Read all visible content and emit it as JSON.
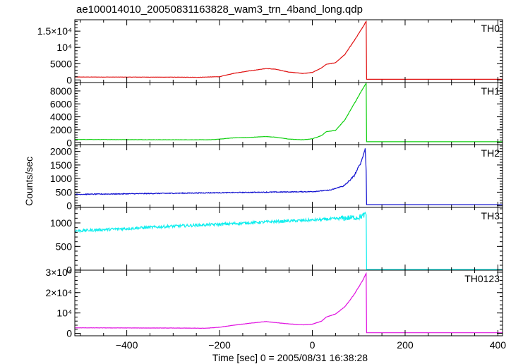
{
  "chart_data": {
    "type": "line",
    "title": "ae100014010_20050831163828_wam3_trn_4band_long.qdp",
    "xlabel": "Time [sec] 0 = 2005/08/31 16:38:28",
    "ylabel": "Counts/sec",
    "xlim": [
      -512,
      410
    ],
    "xticks": [
      -400,
      -200,
      0,
      200,
      400
    ],
    "xtick_labels": [
      "−400",
      "−200",
      "0",
      "200",
      "400"
    ],
    "grid": false,
    "panels": [
      {
        "name": "TH0",
        "color": "#e01010",
        "ylim": [
          -800,
          18500
        ],
        "yticks": [
          0,
          5000,
          10000,
          15000
        ],
        "ytick_labels": [
          "0",
          "5000",
          "10⁴",
          "1.5×10⁴"
        ],
        "noise": 40,
        "points": [
          [
            -512,
            900
          ],
          [
            -300,
            850
          ],
          [
            -250,
            800
          ],
          [
            -200,
            1000
          ],
          [
            -170,
            2000
          ],
          [
            -140,
            2700
          ],
          [
            -100,
            3500
          ],
          [
            -80,
            3300
          ],
          [
            -50,
            2400
          ],
          [
            -20,
            2000
          ],
          [
            0,
            2300
          ],
          [
            20,
            3700
          ],
          [
            30,
            4800
          ],
          [
            50,
            5300
          ],
          [
            70,
            7800
          ],
          [
            90,
            12000
          ],
          [
            110,
            16500
          ],
          [
            116,
            18000
          ],
          [
            117,
            200
          ],
          [
            410,
            200
          ]
        ]
      },
      {
        "name": "TH1",
        "color": "#10d010",
        "ylim": [
          -300,
          9300
        ],
        "yticks": [
          0,
          2000,
          4000,
          6000,
          8000
        ],
        "ytick_labels": [
          "0",
          "2000",
          "4000",
          "6000",
          "8000"
        ],
        "noise": 20,
        "points": [
          [
            -512,
            500
          ],
          [
            -300,
            450
          ],
          [
            -220,
            450
          ],
          [
            -200,
            550
          ],
          [
            -170,
            750
          ],
          [
            -140,
            800
          ],
          [
            -100,
            950
          ],
          [
            -80,
            850
          ],
          [
            -50,
            550
          ],
          [
            -20,
            450
          ],
          [
            0,
            600
          ],
          [
            20,
            1100
          ],
          [
            30,
            1700
          ],
          [
            50,
            1900
          ],
          [
            70,
            3500
          ],
          [
            90,
            6000
          ],
          [
            110,
            8500
          ],
          [
            116,
            9200
          ],
          [
            117,
            150
          ],
          [
            410,
            150
          ]
        ]
      },
      {
        "name": "TH2",
        "color": "#1010d0",
        "ylim": [
          -60,
          2250
        ],
        "yticks": [
          0,
          500,
          1000,
          1500,
          2000
        ],
        "ytick_labels": [
          "0",
          "500",
          "1000",
          "1500",
          "2000"
        ],
        "noise": 15,
        "points": [
          [
            -512,
            420
          ],
          [
            -400,
            440
          ],
          [
            -300,
            460
          ],
          [
            -200,
            480
          ],
          [
            -100,
            500
          ],
          [
            0,
            520
          ],
          [
            40,
            580
          ],
          [
            70,
            750
          ],
          [
            90,
            1100
          ],
          [
            105,
            1600
          ],
          [
            114,
            2100
          ],
          [
            116,
            1300
          ],
          [
            117,
            40
          ],
          [
            410,
            40
          ]
        ]
      },
      {
        "name": "TH3",
        "color": "#10eeee",
        "ylim": [
          -5,
          1330
        ],
        "yticks": [
          0,
          500,
          1000
        ],
        "ytick_labels": [
          "0",
          "500",
          "1000"
        ],
        "noise": 30,
        "points": [
          [
            -512,
            830
          ],
          [
            -400,
            880
          ],
          [
            -300,
            930
          ],
          [
            -200,
            970
          ],
          [
            -100,
            1020
          ],
          [
            0,
            1060
          ],
          [
            100,
            1120
          ],
          [
            116,
            1180
          ],
          [
            117,
            10
          ],
          [
            410,
            10
          ]
        ]
      },
      {
        "name": "TH0123",
        "color": "#e010e0",
        "ylim": [
          -1200,
          31000
        ],
        "yticks": [
          0,
          10000,
          20000,
          30000
        ],
        "ytick_labels": [
          "0",
          "10⁴",
          "2×10⁴",
          "3×10⁴"
        ],
        "noise": 60,
        "points": [
          [
            -512,
            2700
          ],
          [
            -300,
            2600
          ],
          [
            -230,
            2500
          ],
          [
            -200,
            3000
          ],
          [
            -170,
            4000
          ],
          [
            -140,
            4800
          ],
          [
            -100,
            5800
          ],
          [
            -80,
            5300
          ],
          [
            -50,
            4600
          ],
          [
            -20,
            4200
          ],
          [
            0,
            4500
          ],
          [
            20,
            6000
          ],
          [
            30,
            8000
          ],
          [
            50,
            9500
          ],
          [
            70,
            13000
          ],
          [
            90,
            19000
          ],
          [
            110,
            26500
          ],
          [
            116,
            29500
          ],
          [
            117,
            300
          ],
          [
            410,
            300
          ]
        ]
      }
    ]
  }
}
